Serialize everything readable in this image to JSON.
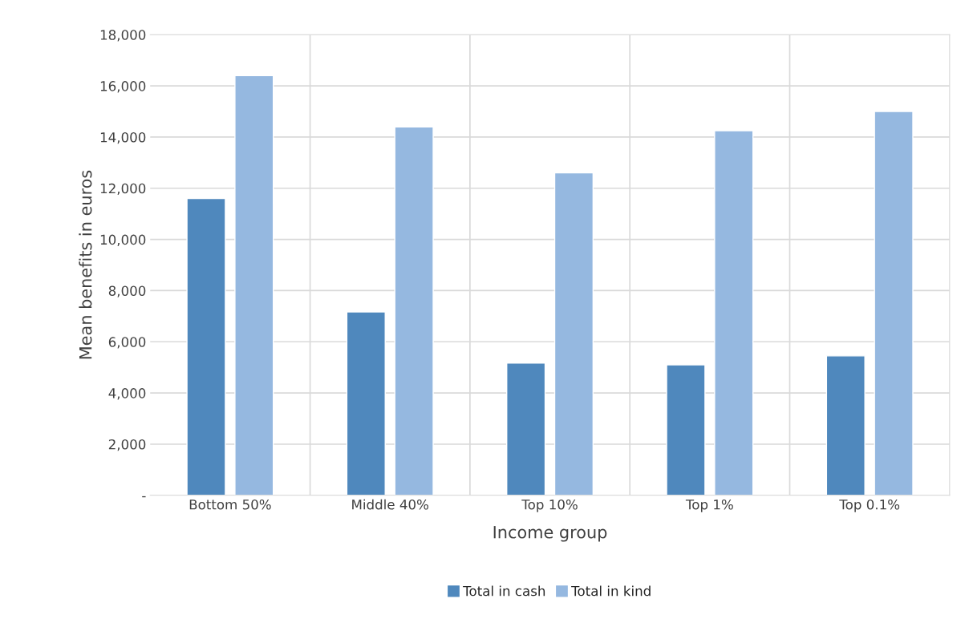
{
  "chart_data": {
    "type": "bar",
    "xlabel": "Income group",
    "ylabel": "Mean benefits in euros",
    "categories": [
      "Bottom 50%",
      "Middle 40%",
      "Top 10%",
      "Top 1%",
      "Top 0.1%"
    ],
    "series": [
      {
        "name": "Total in cash",
        "color": "#4f88bd",
        "values": [
          11600,
          7170,
          5170,
          5100,
          5450
        ]
      },
      {
        "name": "Total in kind",
        "color": "#95b8e0",
        "values": [
          16400,
          14400,
          12600,
          14250,
          15000
        ]
      }
    ],
    "ylim": [
      0,
      18000
    ],
    "yticks": [
      {
        "value": 0,
        "label": "-"
      },
      {
        "value": 2000,
        "label": "2,000"
      },
      {
        "value": 4000,
        "label": "4,000"
      },
      {
        "value": 6000,
        "label": "6,000"
      },
      {
        "value": 8000,
        "label": "8,000"
      },
      {
        "value": 10000,
        "label": "10,000"
      },
      {
        "value": 12000,
        "label": "12,000"
      },
      {
        "value": 14000,
        "label": "14,000"
      },
      {
        "value": 16000,
        "label": "16,000"
      },
      {
        "value": 18000,
        "label": "18,000"
      }
    ],
    "grid": true,
    "legend": "bottom"
  }
}
